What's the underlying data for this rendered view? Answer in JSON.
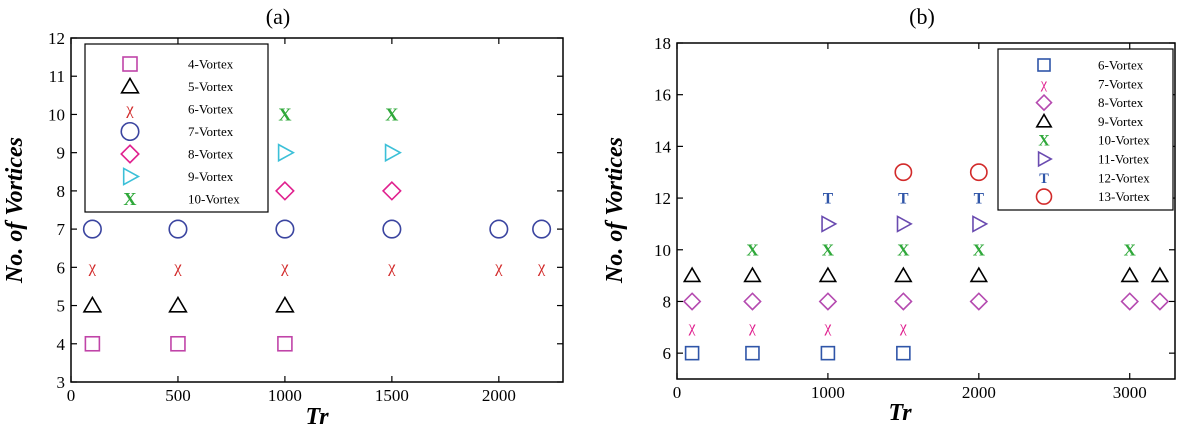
{
  "chart_data": [
    {
      "type": "scatter",
      "title": "(a)",
      "xlabel": "Tr",
      "ylabel": "No. of Vortices",
      "xlim": [
        0,
        2300
      ],
      "ylim": [
        3,
        12
      ],
      "xticks": [
        0,
        500,
        1000,
        1500,
        2000
      ],
      "yticks": [
        3,
        4,
        5,
        6,
        7,
        8,
        9,
        10,
        11,
        12
      ],
      "grid": false,
      "legend_position": "top-left",
      "series": [
        {
          "name": "4-Vortex",
          "marker": "square",
          "color": "#c044a8",
          "x": [
            100,
            500,
            1000
          ],
          "y": [
            4,
            4,
            4
          ]
        },
        {
          "name": "5-Vortex",
          "marker": "triangle-up",
          "color": "#000000",
          "x": [
            100,
            500,
            1000
          ],
          "y": [
            5,
            5,
            5
          ]
        },
        {
          "name": "6-Vortex",
          "marker": "chi",
          "color": "#d22a2a",
          "x": [
            100,
            500,
            1000,
            1500,
            2000,
            2200
          ],
          "y": [
            6,
            6,
            6,
            6,
            6,
            6
          ]
        },
        {
          "name": "7-Vortex",
          "marker": "circle",
          "color": "#3b45a0",
          "x": [
            100,
            500,
            1000,
            1500,
            2000,
            2200
          ],
          "y": [
            7,
            7,
            7,
            7,
            7,
            7
          ]
        },
        {
          "name": "8-Vortex",
          "marker": "diamond",
          "color": "#e0208e",
          "x": [
            1000,
            1500
          ],
          "y": [
            8,
            8
          ]
        },
        {
          "name": "9-Vortex",
          "marker": "triangle-right",
          "color": "#3cc0d8",
          "x": [
            1000,
            1500
          ],
          "y": [
            9,
            9
          ]
        },
        {
          "name": "10-Vortex",
          "marker": "x",
          "color": "#2fa83a",
          "x": [
            1000,
            1500
          ],
          "y": [
            10,
            10
          ]
        }
      ]
    },
    {
      "type": "scatter",
      "title": "(b)",
      "xlabel": "Tr",
      "ylabel": "No. of Vortices",
      "xlim": [
        0,
        3300
      ],
      "ylim": [
        5,
        18
      ],
      "xticks": [
        0,
        1000,
        2000,
        3000
      ],
      "yticks": [
        6,
        8,
        10,
        12,
        14,
        16,
        18
      ],
      "grid": false,
      "legend_position": "top-right",
      "series": [
        {
          "name": "6-Vortex",
          "marker": "square",
          "color": "#2f55a8",
          "x": [
            100,
            500,
            1000,
            1500
          ],
          "y": [
            6,
            6,
            6,
            6
          ]
        },
        {
          "name": "7-Vortex",
          "marker": "chi",
          "color": "#e0208e",
          "x": [
            100,
            500,
            1000,
            1500
          ],
          "y": [
            7,
            7,
            7,
            7
          ]
        },
        {
          "name": "8-Vortex",
          "marker": "diamond",
          "color": "#b54ab0",
          "x": [
            100,
            500,
            1000,
            1500,
            2000,
            3000,
            3200
          ],
          "y": [
            8,
            8,
            8,
            8,
            8,
            8,
            8
          ]
        },
        {
          "name": "9-Vortex",
          "marker": "triangle-up",
          "color": "#000000",
          "x": [
            100,
            500,
            1000,
            1500,
            2000,
            3000,
            3200
          ],
          "y": [
            9,
            9,
            9,
            9,
            9,
            9,
            9
          ]
        },
        {
          "name": "10-Vortex",
          "marker": "x",
          "color": "#2fa83a",
          "x": [
            500,
            1000,
            1500,
            2000,
            3000
          ],
          "y": [
            10,
            10,
            10,
            10,
            10
          ]
        },
        {
          "name": "11-Vortex",
          "marker": "triangle-right",
          "color": "#6a4bb0",
          "x": [
            1000,
            1500,
            2000
          ],
          "y": [
            11,
            11,
            11
          ]
        },
        {
          "name": "12-Vortex",
          "marker": "T",
          "color": "#2f55a8",
          "x": [
            1000,
            1500,
            2000
          ],
          "y": [
            12,
            12,
            12
          ]
        },
        {
          "name": "13-Vortex",
          "marker": "circle",
          "color": "#d22a2a",
          "x": [
            1500,
            2000
          ],
          "y": [
            13,
            13
          ]
        }
      ]
    }
  ]
}
